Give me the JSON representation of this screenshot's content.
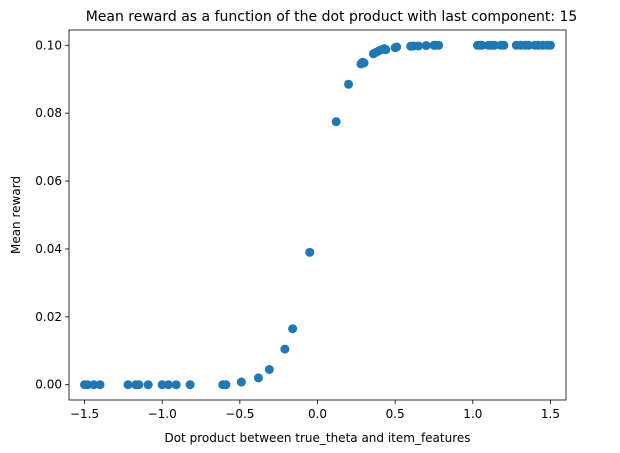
{
  "chart_data": {
    "type": "scatter",
    "title": "Mean reward as a function of the dot product with last component: 15",
    "xlabel": "Dot product between true_theta and item_features",
    "ylabel": "Mean reward",
    "xlim": [
      -1.6,
      1.6
    ],
    "ylim": [
      -0.0045,
      0.1045
    ],
    "xticks": [
      -1.5,
      -1.0,
      -0.5,
      0.0,
      0.5,
      1.0,
      1.5
    ],
    "xtick_labels": [
      "−1.5",
      "−1.0",
      "−0.5",
      "0.0",
      "0.5",
      "1.0",
      "1.5"
    ],
    "yticks": [
      0.0,
      0.02,
      0.04,
      0.06,
      0.08,
      0.1
    ],
    "ytick_labels": [
      "0.00",
      "0.02",
      "0.04",
      "0.06",
      "0.08",
      "0.10"
    ],
    "grid": false,
    "marker_color": "#1f77b4",
    "points": [
      {
        "x": -1.5,
        "y": 0.0
      },
      {
        "x": -1.48,
        "y": 0.0
      },
      {
        "x": -1.44,
        "y": 0.0
      },
      {
        "x": -1.4,
        "y": 0.0
      },
      {
        "x": -1.22,
        "y": 0.0
      },
      {
        "x": -1.17,
        "y": 0.0
      },
      {
        "x": -1.15,
        "y": 0.0
      },
      {
        "x": -1.09,
        "y": 0.0
      },
      {
        "x": -1.0,
        "y": 0.0
      },
      {
        "x": -0.96,
        "y": 0.0
      },
      {
        "x": -0.91,
        "y": 0.0
      },
      {
        "x": -0.82,
        "y": 0.0
      },
      {
        "x": -0.61,
        "y": 0.0
      },
      {
        "x": -0.59,
        "y": 0.0
      },
      {
        "x": -0.49,
        "y": 0.0008
      },
      {
        "x": -0.38,
        "y": 0.002
      },
      {
        "x": -0.31,
        "y": 0.0045
      },
      {
        "x": -0.21,
        "y": 0.0105
      },
      {
        "x": -0.16,
        "y": 0.0165
      },
      {
        "x": -0.05,
        "y": 0.039
      },
      {
        "x": 0.12,
        "y": 0.0775
      },
      {
        "x": 0.2,
        "y": 0.0885
      },
      {
        "x": 0.28,
        "y": 0.0945
      },
      {
        "x": 0.29,
        "y": 0.095
      },
      {
        "x": 0.3,
        "y": 0.0948
      },
      {
        "x": 0.36,
        "y": 0.0975
      },
      {
        "x": 0.38,
        "y": 0.098
      },
      {
        "x": 0.4,
        "y": 0.0985
      },
      {
        "x": 0.42,
        "y": 0.0988
      },
      {
        "x": 0.43,
        "y": 0.099
      },
      {
        "x": 0.44,
        "y": 0.0987
      },
      {
        "x": 0.5,
        "y": 0.0993
      },
      {
        "x": 0.51,
        "y": 0.0995
      },
      {
        "x": 0.6,
        "y": 0.0997
      },
      {
        "x": 0.62,
        "y": 0.0998
      },
      {
        "x": 0.65,
        "y": 0.0998
      },
      {
        "x": 0.7,
        "y": 0.0999
      },
      {
        "x": 0.75,
        "y": 0.1
      },
      {
        "x": 0.76,
        "y": 0.1
      },
      {
        "x": 0.78,
        "y": 0.1
      },
      {
        "x": 1.03,
        "y": 0.1
      },
      {
        "x": 1.05,
        "y": 0.1
      },
      {
        "x": 1.06,
        "y": 0.1
      },
      {
        "x": 1.1,
        "y": 0.1
      },
      {
        "x": 1.12,
        "y": 0.1
      },
      {
        "x": 1.14,
        "y": 0.1
      },
      {
        "x": 1.18,
        "y": 0.1
      },
      {
        "x": 1.2,
        "y": 0.1
      },
      {
        "x": 1.28,
        "y": 0.1
      },
      {
        "x": 1.31,
        "y": 0.1
      },
      {
        "x": 1.34,
        "y": 0.1
      },
      {
        "x": 1.36,
        "y": 0.1
      },
      {
        "x": 1.4,
        "y": 0.1
      },
      {
        "x": 1.42,
        "y": 0.1
      },
      {
        "x": 1.45,
        "y": 0.1
      },
      {
        "x": 1.48,
        "y": 0.1
      },
      {
        "x": 1.5,
        "y": 0.1
      }
    ]
  }
}
